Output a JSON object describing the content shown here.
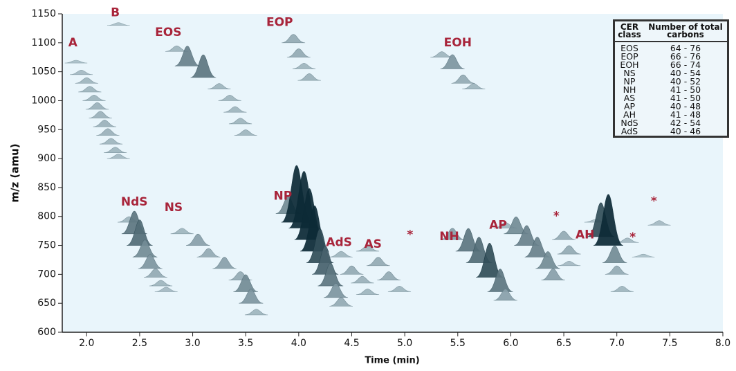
{
  "chart_data": {
    "type": "peak",
    "x_label": "Time (min)",
    "y_label": "m/z (amu)",
    "xlim": [
      1.77,
      8.0
    ],
    "xticks": [
      {
        "value": 2,
        "label": "2.0"
      },
      2.5,
      {
        "value": 3,
        "label": "3.0"
      },
      3.5,
      {
        "value": 4,
        "label": "4.0"
      },
      4.5,
      {
        "value": 5,
        "label": "5.0"
      },
      5.5,
      {
        "value": 6,
        "label": "6.0"
      },
      6.5,
      {
        "value": 7,
        "label": "7.0"
      },
      7.5,
      {
        "value": 8,
        "label": "8.0"
      }
    ],
    "ylim": [
      600,
      1150
    ],
    "yticks": [
      600,
      650,
      700,
      750,
      800,
      850,
      900,
      950,
      1000,
      1050,
      1100,
      1150
    ],
    "color_low": "#d3e6ee",
    "color_high": "#0c2a36",
    "x": [
      1.9,
      1.95,
      2.0,
      2.03,
      2.07,
      2.1,
      2.13,
      2.17,
      2.2,
      2.23,
      2.27,
      2.3,
      2.3,
      2.85,
      2.95,
      3.1,
      3.25,
      3.35,
      3.4,
      3.45,
      3.5,
      3.95,
      4.0,
      4.05,
      4.1,
      5.35,
      5.45,
      5.55,
      5.65,
      2.4,
      2.45,
      2.5,
      2.55,
      2.6,
      2.65,
      2.7,
      2.75,
      2.9,
      3.05,
      3.15,
      3.3,
      3.45,
      3.5,
      3.55,
      3.6,
      3.9,
      3.98,
      4.05,
      4.1,
      4.15,
      4.2,
      4.25,
      4.3,
      4.35,
      4.4,
      4.4,
      4.5,
      4.6,
      4.65,
      4.65,
      4.75,
      4.85,
      4.95,
      5.45,
      5.6,
      5.7,
      5.8,
      5.9,
      5.95,
      5.95,
      6.05,
      6.15,
      6.25,
      6.35,
      6.4,
      6.5,
      6.55,
      6.55,
      6.8,
      6.85,
      6.92,
      6.98,
      7.0,
      7.05,
      7.1,
      7.4,
      7.25
    ],
    "values": [
      1065,
      1045,
      1030,
      1015,
      1000,
      985,
      970,
      955,
      940,
      925,
      910,
      900,
      1130,
      1085,
      1060,
      1040,
      1020,
      1000,
      980,
      960,
      940,
      1100,
      1075,
      1055,
      1035,
      1075,
      1055,
      1030,
      1020,
      790,
      770,
      750,
      730,
      710,
      695,
      680,
      670,
      770,
      750,
      730,
      710,
      690,
      670,
      650,
      630,
      805,
      790,
      780,
      760,
      740,
      720,
      700,
      680,
      660,
      645,
      730,
      700,
      685,
      665,
      740,
      715,
      690,
      670,
      760,
      740,
      720,
      695,
      670,
      655,
      780,
      770,
      750,
      730,
      710,
      690,
      760,
      735,
      715,
      790,
      765,
      750,
      720,
      700,
      670,
      755,
      785,
      730
    ],
    "intensity": [
      5,
      8,
      10,
      10,
      10,
      12,
      12,
      12,
      12,
      10,
      10,
      8,
      5,
      10,
      35,
      40,
      10,
      10,
      10,
      10,
      10,
      15,
      15,
      10,
      12,
      10,
      25,
      15,
      10,
      10,
      40,
      45,
      30,
      25,
      15,
      10,
      8,
      10,
      20,
      15,
      20,
      15,
      30,
      25,
      10,
      30,
      100,
      100,
      90,
      80,
      60,
      50,
      40,
      25,
      15,
      10,
      15,
      12,
      10,
      10,
      15,
      15,
      10,
      20,
      40,
      45,
      60,
      40,
      20,
      10,
      30,
      35,
      35,
      30,
      20,
      15,
      15,
      8,
      5,
      60,
      90,
      30,
      15,
      10,
      8,
      8,
      5
    ],
    "annotation_color": "#a8243a",
    "annotations": [
      {
        "text": "A",
        "x": 1.87,
        "y": 1100
      },
      {
        "text": "B",
        "x": 2.27,
        "y": 1152
      },
      {
        "text": "EOS",
        "x": 2.77,
        "y": 1118
      },
      {
        "text": "EOP",
        "x": 3.82,
        "y": 1135
      },
      {
        "text": "EOH",
        "x": 5.5,
        "y": 1100
      },
      {
        "text": "NdS",
        "x": 2.45,
        "y": 825
      },
      {
        "text": "NS",
        "x": 2.82,
        "y": 815
      },
      {
        "text": "NP",
        "x": 3.85,
        "y": 835
      },
      {
        "text": "AdS",
        "x": 4.38,
        "y": 755
      },
      {
        "text": "AS",
        "x": 4.7,
        "y": 752
      },
      {
        "text": "NH",
        "x": 5.42,
        "y": 765
      },
      {
        "text": "AP",
        "x": 5.88,
        "y": 785
      },
      {
        "text": "AH",
        "x": 6.7,
        "y": 768
      },
      {
        "text": "*",
        "x": 5.05,
        "y": 768
      },
      {
        "text": "*",
        "x": 6.43,
        "y": 800
      },
      {
        "text": "*",
        "x": 7.15,
        "y": 764
      },
      {
        "text": "*",
        "x": 7.35,
        "y": 826
      }
    ],
    "table": {
      "headers": [
        "CER class",
        "Number of total carbons"
      ],
      "rows": [
        [
          "EOS",
          "64 - 76"
        ],
        [
          "EOP",
          "66 - 76"
        ],
        [
          "EOH",
          "66 - 74"
        ],
        [
          "NS",
          "40 - 54"
        ],
        [
          "NP",
          "40 - 52"
        ],
        [
          "NH",
          "41 - 50"
        ],
        [
          "AS",
          "41 - 50"
        ],
        [
          "AP",
          "40 - 48"
        ],
        [
          "AH",
          "41 - 48"
        ],
        [
          "NdS",
          "42 - 54"
        ],
        [
          "AdS",
          "40 - 46"
        ]
      ]
    }
  }
}
